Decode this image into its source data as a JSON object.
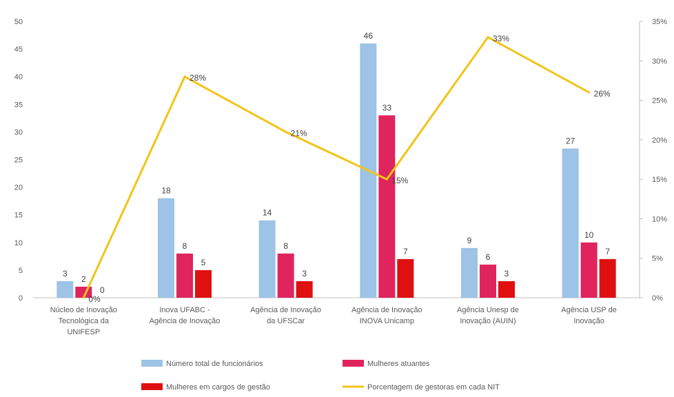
{
  "chart_data": {
    "type": "bar",
    "title": "",
    "categories": [
      [
        "Núcleo de Inovação",
        "Tecnológica da",
        "UNIFESP"
      ],
      [
        "Inova UFABC -",
        "Agência de Inovação"
      ],
      [
        "Agência de Inovação",
        "da UFSCar"
      ],
      [
        "Agência de Inovação",
        "INOVA Unicamp"
      ],
      [
        "Agência Unesp de",
        "Inovação (AUIN)"
      ],
      [
        "Agência USP de",
        "Inovação"
      ]
    ],
    "series": [
      {
        "name": "Número total de funcionários",
        "type": "bar",
        "axis": "left",
        "color": "#9DC3E6",
        "values": [
          3,
          18,
          14,
          46,
          9,
          27
        ]
      },
      {
        "name": "Mulheres atuantes",
        "type": "bar",
        "axis": "left",
        "color": "#E0245E",
        "values": [
          2,
          8,
          8,
          33,
          6,
          10
        ]
      },
      {
        "name": "Mulheres em cargos de gestão",
        "type": "bar",
        "axis": "left",
        "color": "#E01010",
        "values": [
          0,
          5,
          3,
          7,
          3,
          7
        ]
      },
      {
        "name": "Porcentagem de gestoras em cada NIT",
        "type": "line",
        "axis": "right",
        "color": "#F2C416",
        "values": [
          0,
          28,
          21,
          15,
          33,
          26
        ],
        "labels": [
          "0%",
          "28%",
          "21%",
          "15%",
          "33%",
          "26%"
        ]
      }
    ],
    "y_left": {
      "min": 0,
      "max": 50,
      "ticks": [
        "0",
        "5",
        "10",
        "15",
        "20",
        "25",
        "30",
        "35",
        "40",
        "45",
        "50"
      ]
    },
    "y_right": {
      "min": 0,
      "max": 35,
      "ticks": [
        "0%",
        "5%",
        "10%",
        "15%",
        "20%",
        "25%",
        "30%",
        "35%"
      ]
    },
    "grid": false,
    "legend_position": "bottom"
  }
}
